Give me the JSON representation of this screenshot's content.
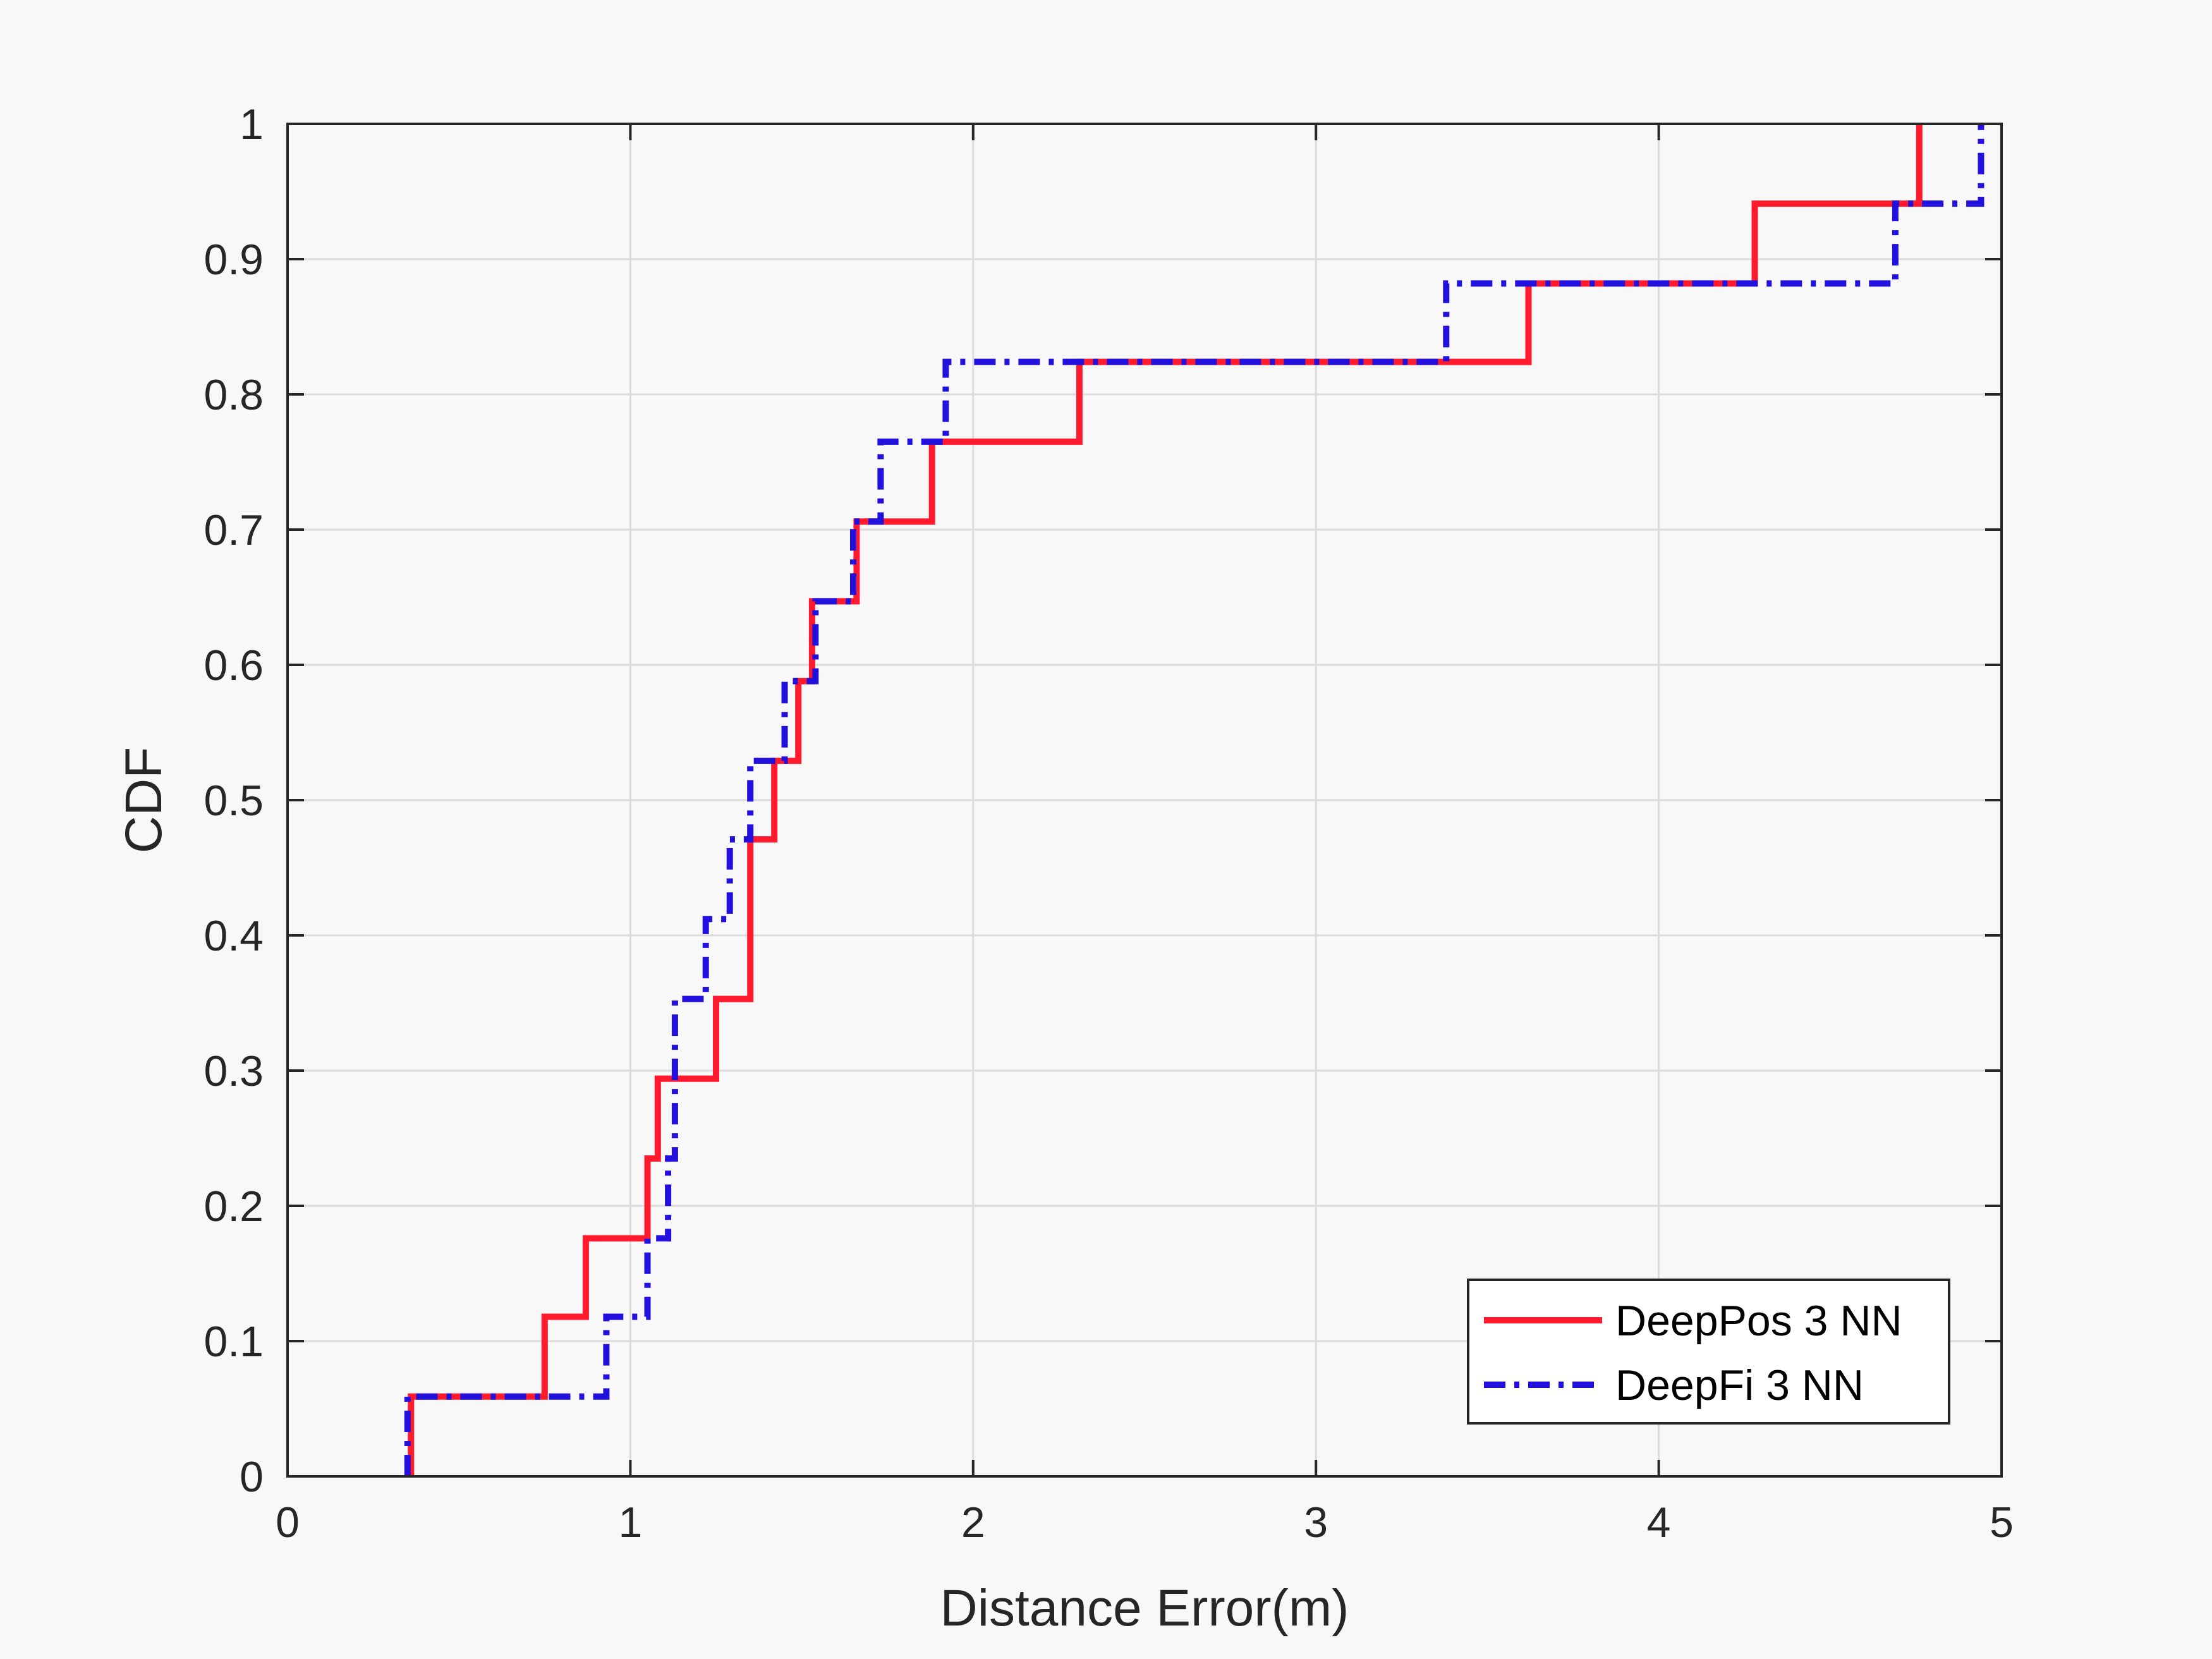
{
  "chart_data": {
    "type": "line",
    "step": true,
    "title": "",
    "xlabel": "Distance Error(m)",
    "ylabel": "CDF",
    "xlim": [
      0,
      5
    ],
    "ylim": [
      0,
      1
    ],
    "xticks": [
      0,
      1,
      2,
      3,
      4,
      5
    ],
    "xtick_labels": [
      "0",
      "1",
      "2",
      "3",
      "4",
      "5"
    ],
    "yticks": [
      0,
      0.1,
      0.2,
      0.3,
      0.4,
      0.5,
      0.6,
      0.7,
      0.8,
      0.9,
      1
    ],
    "ytick_labels": [
      "0",
      "0.1",
      "0.2",
      "0.3",
      "0.4",
      "0.5",
      "0.6",
      "0.7",
      "0.8",
      "0.9",
      "1"
    ],
    "grid": true,
    "legend": "bottom-right",
    "series": [
      {
        "name": "DeepPos 3 NN",
        "color": "#ff1a2e",
        "dash": "solid",
        "x": [
          0.36,
          0.36,
          0.75,
          0.75,
          0.87,
          0.87,
          1.05,
          1.05,
          1.08,
          1.08,
          1.25,
          1.25,
          1.35,
          1.35,
          1.42,
          1.42,
          1.49,
          1.49,
          1.53,
          1.53,
          1.66,
          1.66,
          1.88,
          1.88,
          2.31,
          2.31,
          3.62,
          3.62,
          4.28,
          4.28,
          4.76,
          4.76
        ],
        "y": [
          0.0,
          0.059,
          0.059,
          0.118,
          0.118,
          0.176,
          0.176,
          0.235,
          0.235,
          0.294,
          0.294,
          0.353,
          0.353,
          0.471,
          0.471,
          0.529,
          0.529,
          0.588,
          0.588,
          0.647,
          0.647,
          0.706,
          0.706,
          0.765,
          0.765,
          0.824,
          0.824,
          0.882,
          0.882,
          0.941,
          0.941,
          1.0
        ]
      },
      {
        "name": "DeepFi 3 NN",
        "color": "#2211dd",
        "dash": "dashdot",
        "x": [
          0.35,
          0.35,
          0.93,
          0.93,
          1.05,
          1.05,
          1.11,
          1.11,
          1.13,
          1.13,
          1.22,
          1.22,
          1.29,
          1.29,
          1.35,
          1.35,
          1.45,
          1.45,
          1.54,
          1.54,
          1.65,
          1.65,
          1.73,
          1.73,
          1.92,
          1.92,
          3.38,
          3.38,
          4.69,
          4.69,
          4.94,
          4.94
        ],
        "y": [
          0.0,
          0.059,
          0.059,
          0.118,
          0.118,
          0.176,
          0.176,
          0.235,
          0.235,
          0.353,
          0.353,
          0.412,
          0.412,
          0.471,
          0.471,
          0.529,
          0.529,
          0.588,
          0.588,
          0.647,
          0.647,
          0.706,
          0.706,
          0.765,
          0.765,
          0.824,
          0.824,
          0.882,
          0.882,
          0.941,
          0.941,
          1.0
        ]
      }
    ]
  }
}
